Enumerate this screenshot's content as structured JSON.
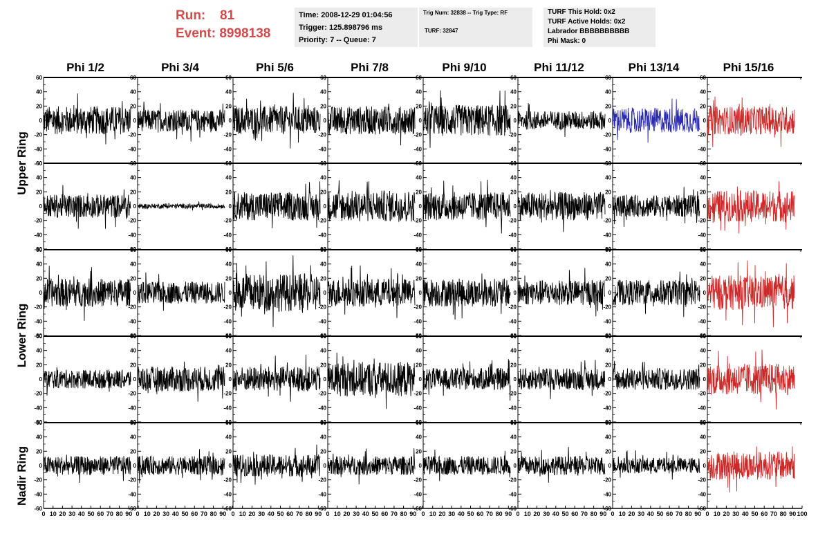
{
  "header": {
    "run_label": "Run:",
    "run_value": "81",
    "event_label": "Event:",
    "event_value": "8998138",
    "time": "Time: 2008-12-29 01:04:56",
    "trigger": "Trigger: 125.898796 ms",
    "priority": "Priority: 7 -- Queue: 7",
    "trig_num": "Trig Num: 32838 -- Trig Type: RF",
    "turf": "TURF: 32847",
    "turf_this_hold": "TURF This Hold: 0x2",
    "turf_active_holds": "TURF Active Holds: 0x2",
    "labrador": "Labrador BBBBBBBBBB",
    "phi_mask": "Phi Mask: 0"
  },
  "columns": [
    "Phi 1/2",
    "Phi 3/4",
    "Phi 5/6",
    "Phi 7/8",
    "Phi 9/10",
    "Phi 11/12",
    "Phi 13/14",
    "Phi 15/16"
  ],
  "rows": [
    {
      "label": "Upper Ring",
      "panels": 2
    },
    {
      "label": "Lower Ring",
      "panels": 2
    },
    {
      "label": "Nadir Ring",
      "panels": 1
    }
  ],
  "chart_data": {
    "type": "line",
    "description_of_grid": "5 rows x 8 columns of waveform panels",
    "xlim": [
      0,
      100
    ],
    "ylim": [
      -60,
      60
    ],
    "x_ticks": [
      0,
      10,
      20,
      30,
      40,
      50,
      60,
      70,
      80,
      90,
      100
    ],
    "x_tick_labels": [
      "0",
      "10",
      "20",
      "30",
      "40",
      "50",
      "60",
      "70",
      "80",
      "90",
      "100"
    ],
    "y_ticks": [
      -60,
      -40,
      -20,
      0,
      20,
      40,
      60
    ],
    "y_tick_labels": [
      "-60",
      "-40",
      "-20",
      "0",
      "20",
      "40",
      "60"
    ],
    "sample_range": [
      0,
      92
    ],
    "colors": {
      "default": "#000000",
      "highlight_blue": "#2b2bb0",
      "highlight_red": "#cc2a2a",
      "title_red": "#d24b4b",
      "box_gray": "#ececec"
    },
    "panel_amplitude": [
      [
        18,
        14,
        18,
        18,
        20,
        12,
        16,
        18
      ],
      [
        15,
        3,
        18,
        20,
        18,
        18,
        14,
        20
      ],
      [
        18,
        14,
        24,
        18,
        18,
        16,
        16,
        22
      ],
      [
        12,
        16,
        16,
        22,
        14,
        14,
        14,
        20
      ],
      [
        12,
        12,
        14,
        12,
        12,
        12,
        10,
        18
      ]
    ],
    "panel_color": [
      [
        "default",
        "default",
        "default",
        "default",
        "default",
        "default",
        "highlight_blue",
        "highlight_red"
      ],
      [
        "default",
        "default",
        "default",
        "default",
        "default",
        "default",
        "default",
        "highlight_red"
      ],
      [
        "default",
        "default",
        "default",
        "default",
        "default",
        "default",
        "default",
        "highlight_red"
      ],
      [
        "default",
        "default",
        "default",
        "default",
        "default",
        "default",
        "default",
        "highlight_red"
      ],
      [
        "default",
        "default",
        "default",
        "default",
        "default",
        "default",
        "default",
        "highlight_red"
      ]
    ]
  }
}
